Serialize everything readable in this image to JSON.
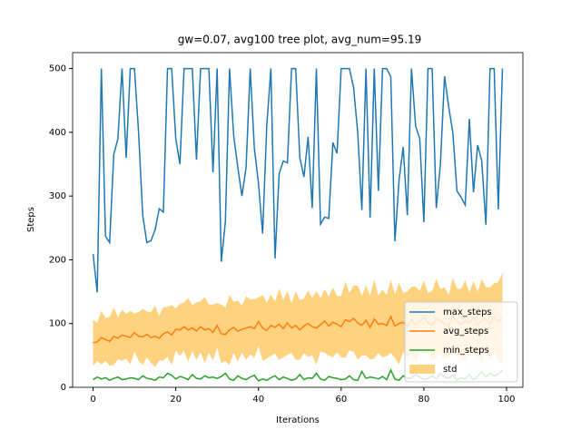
{
  "chart_data": {
    "type": "line",
    "title": "gw=0.07, avg100 tree plot, avg_num=95.19",
    "xlabel": "Iterations",
    "ylabel": "Steps",
    "x": [
      0,
      1,
      2,
      3,
      4,
      5,
      6,
      7,
      8,
      9,
      10,
      11,
      12,
      13,
      14,
      15,
      16,
      17,
      18,
      19,
      20,
      21,
      22,
      23,
      24,
      25,
      26,
      27,
      28,
      29,
      30,
      31,
      32,
      33,
      34,
      35,
      36,
      37,
      38,
      39,
      40,
      41,
      42,
      43,
      44,
      45,
      46,
      47,
      48,
      49,
      50,
      51,
      52,
      53,
      54,
      55,
      56,
      57,
      58,
      59,
      60,
      61,
      62,
      63,
      64,
      65,
      66,
      67,
      68,
      69,
      70,
      71,
      72,
      73,
      74,
      75,
      76,
      77,
      78,
      79,
      80,
      81,
      82,
      83,
      84,
      85,
      86,
      87,
      88,
      89,
      90,
      91,
      92,
      93,
      94,
      95,
      96,
      97,
      98,
      99
    ],
    "series": [
      {
        "name": "max_steps",
        "color": "#1f77b4",
        "values": [
          209,
          149,
          500,
          237,
          227,
          365,
          390,
          500,
          360,
          500,
          500,
          400,
          270,
          227,
          230,
          247,
          280,
          275,
          500,
          500,
          390,
          350,
          500,
          500,
          500,
          357,
          500,
          500,
          500,
          337,
          500,
          197,
          260,
          500,
          395,
          345,
          300,
          345,
          500,
          375,
          320,
          241,
          410,
          500,
          202,
          335,
          355,
          352,
          500,
          500,
          360,
          330,
          393,
          281,
          500,
          256,
          267,
          265,
          384,
          367,
          500,
          500,
          500,
          470,
          400,
          278,
          500,
          266,
          500,
          308,
          500,
          500,
          487,
          229,
          325,
          377,
          270,
          500,
          410,
          390,
          259,
          500,
          500,
          281,
          350,
          488,
          440,
          400,
          308,
          298,
          286,
          421,
          306,
          380,
          355,
          255,
          500,
          500,
          279,
          500
        ]
      },
      {
        "name": "avg_steps",
        "color": "#ff7f0e",
        "values": [
          70,
          71,
          78,
          75,
          72,
          80,
          77,
          82,
          80,
          78,
          86,
          80,
          79,
          83,
          78,
          80,
          77,
          84,
          87,
          82,
          91,
          90,
          95,
          90,
          93,
          88,
          95,
          90,
          92,
          86,
          97,
          84,
          83,
          90,
          94,
          88,
          91,
          93,
          95,
          92,
          103,
          93,
          89,
          97,
          94,
          99,
          92,
          101,
          93,
          97,
          90,
          96,
          100,
          95,
          93,
          98,
          104,
          96,
          102,
          99,
          95,
          106,
          103,
          108,
          101,
          97,
          105,
          94,
          107,
          99,
          100,
          97,
          111,
          96,
          100,
          102,
          95,
          106,
          98,
          103,
          110,
          101,
          97,
          108,
          104,
          100,
          96,
          112,
          103,
          99,
          105,
          101,
          109,
          98,
          104,
          107,
          100,
          110,
          103,
          108
        ]
      },
      {
        "name": "min_steps",
        "color": "#2ca02c",
        "values": [
          12,
          16,
          13,
          15,
          11,
          14,
          16,
          12,
          13,
          15,
          14,
          12,
          18,
          14,
          13,
          11,
          16,
          15,
          22,
          19,
          13,
          17,
          15,
          12,
          20,
          14,
          13,
          18,
          15,
          16,
          14,
          17,
          22,
          13,
          11,
          18,
          14,
          12,
          16,
          19,
          10,
          13,
          11,
          15,
          18,
          12,
          16,
          14,
          11,
          13,
          20,
          12,
          15,
          14,
          22,
          13,
          11,
          17,
          15,
          14,
          12,
          13,
          18,
          12,
          11,
          25,
          14,
          16,
          15,
          13,
          17,
          12,
          27,
          13,
          11,
          18,
          14,
          15,
          20,
          16,
          12,
          14,
          18,
          13,
          22,
          16,
          14,
          19,
          11,
          15,
          13,
          20,
          12,
          17,
          24,
          16,
          22,
          18,
          21,
          27
        ]
      },
      {
        "name": "std",
        "color": "#ffa500",
        "values": [
          36,
          30,
          42,
          34,
          38,
          45,
          33,
          40,
          35,
          42,
          30,
          38,
          44,
          36,
          40,
          48,
          35,
          42,
          39,
          47,
          33,
          41,
          38,
          50,
          36,
          45,
          40,
          52,
          38,
          44,
          35,
          46,
          42,
          55,
          40,
          48,
          37,
          50,
          43,
          46,
          38,
          52,
          44,
          48,
          41,
          56,
          45,
          50,
          39,
          54,
          47,
          43,
          52,
          45,
          58,
          42,
          50,
          46,
          55,
          44,
          48,
          60,
          45,
          52,
          58,
          47,
          55,
          50,
          62,
          45,
          53,
          48,
          57,
          50,
          64,
          46,
          55,
          52,
          60,
          48,
          58,
          47,
          54,
          62,
          50,
          57,
          49,
          60,
          52,
          55,
          63,
          48,
          58,
          52,
          66,
          50,
          57,
          53,
          62,
          72
        ]
      }
    ],
    "band_series": "std",
    "band_center": "avg_steps",
    "xlim": [
      -4.95,
      103.95
    ],
    "xticks": [
      0,
      20,
      40,
      60,
      80,
      100
    ],
    "ylim": [
      0,
      525
    ],
    "yticks": [
      0,
      100,
      200,
      300,
      400,
      500
    ],
    "legend": "lower right"
  }
}
